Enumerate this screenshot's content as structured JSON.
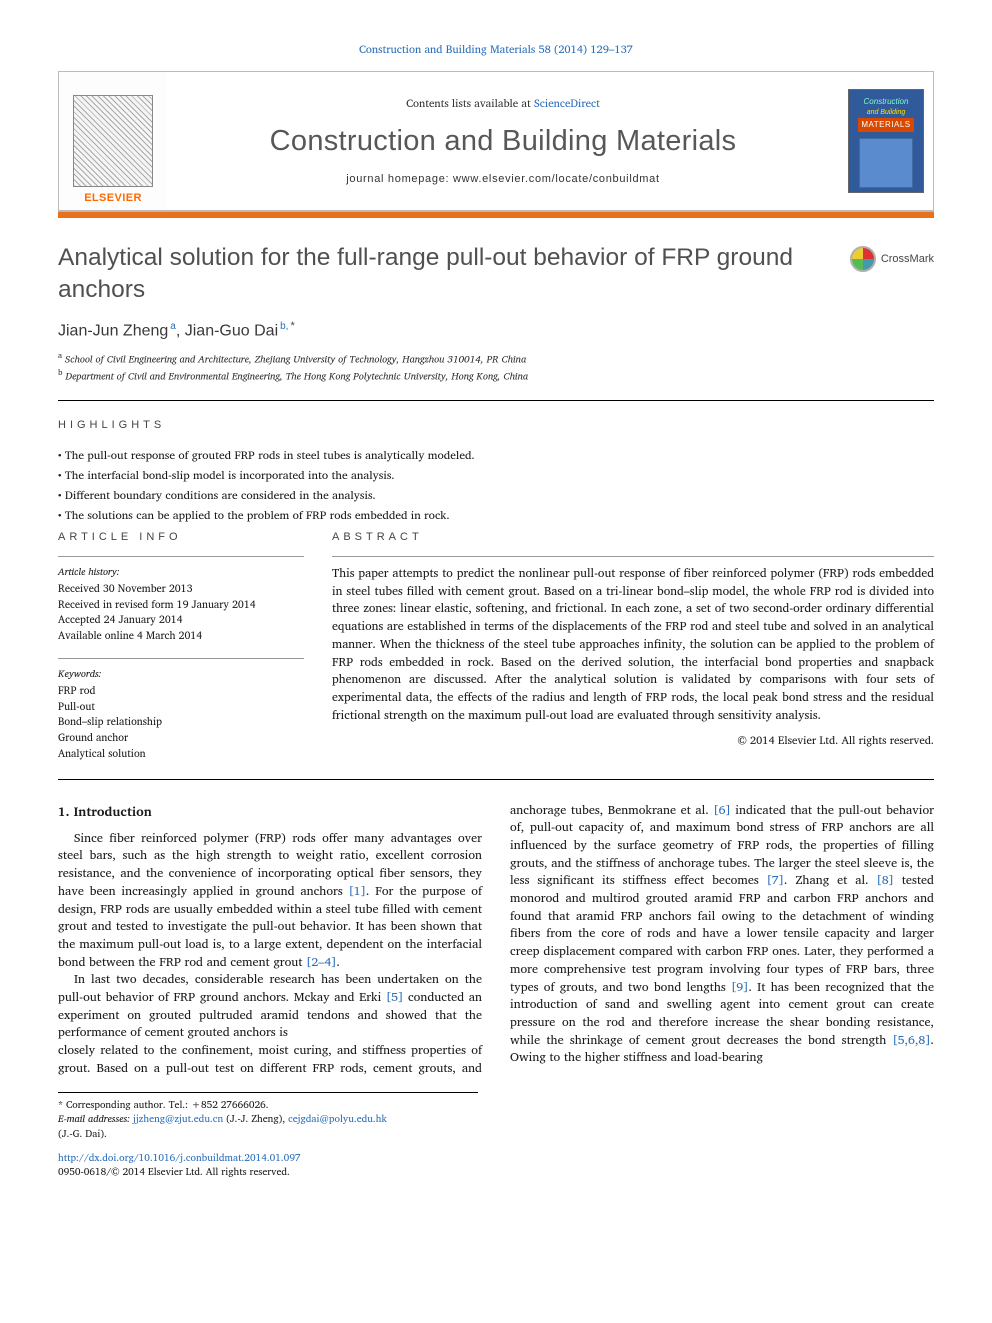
{
  "journal": {
    "citation_line": "Construction and Building Materials 58 (2014) 129–137",
    "contents_available": "Contents lists available at ",
    "contents_link": "ScienceDirect",
    "title": "Construction and Building Materials",
    "homepage_label": "journal homepage: www.elsevier.com/locate/conbuildmat",
    "publisher": "ELSEVIER",
    "cover": {
      "line1": "Construction",
      "line2": "and Building",
      "line3": "MATERIALS"
    }
  },
  "crossmark": "CrossMark",
  "article": {
    "title": "Analytical solution for the full-range pull-out behavior of FRP ground anchors",
    "authors_html": "Jian-Jun Zheng",
    "author2": "Jian-Guo Dai",
    "sup_a": "a",
    "sup_b": "b,",
    "star": "*",
    "author_sep": ", ",
    "affil_a": "School of Civil Engineering and Architecture, Zhejiang University of Technology, Hangzhou 310014, PR China",
    "affil_b": "Department of Civil and Environmental Engineering, The Hong Kong Polytechnic University, Hong Kong, China"
  },
  "highlights": {
    "heading": "highlights",
    "items": [
      "The pull-out response of grouted FRP rods in steel tubes is analytically modeled.",
      "The interfacial bond-slip model is incorporated into the analysis.",
      "Different boundary conditions are considered in the analysis.",
      "The solutions can be applied to the problem of FRP rods embedded in rock."
    ]
  },
  "article_info": {
    "heading": "article info",
    "history_heading": "Article history:",
    "history": [
      "Received 30 November 2013",
      "Received in revised form 19 January 2014",
      "Accepted 24 January 2014",
      "Available online 4 March 2014"
    ],
    "keywords_heading": "Keywords:",
    "keywords": [
      "FRP rod",
      "Pull-out",
      "Bond–slip relationship",
      "Ground anchor",
      "Analytical solution"
    ]
  },
  "abstract": {
    "heading": "abstract",
    "text": "This paper attempts to predict the nonlinear pull-out response of fiber reinforced polymer (FRP) rods embedded in steel tubes filled with cement grout. Based on a tri-linear bond–slip model, the whole FRP rod is divided into three zones: linear elastic, softening, and frictional. In each zone, a set of two second-order ordinary differential equations are established in terms of the displacements of the FRP rod and steel tube and solved in an analytical manner. When the thickness of the steel tube approaches infinity, the solution can be applied to the problem of FRP rods embedded in rock. Based on the derived solution, the interfacial bond properties and snapback phenomenon are discussed. After the analytical solution is validated by comparisons with four sets of experimental data, the effects of the radius and length of FRP rods, the local peak bond stress and the residual frictional strength on the maximum pull-out load are evaluated through sensitivity analysis.",
    "copyright": "© 2014 Elsevier Ltd. All rights reserved."
  },
  "body": {
    "section_heading": "1. Introduction",
    "p1": "Since fiber reinforced polymer (FRP) rods offer many advantages over steel bars, such as the high strength to weight ratio, excellent corrosion resistance, and the convenience of incorporating optical fiber sensors, they have been increasingly applied in ground anchors [1]. For the purpose of design, FRP rods are usually embedded within a steel tube filled with cement grout and tested to investigate the pull-out behavior. It has been shown that the maximum pull-out load is, to a large extent, dependent on the interfacial bond between the FRP rod and cement grout [2–4].",
    "p2": "In last two decades, considerable research has been undertaken on the pull-out behavior of FRP ground anchors. Mckay and Erki [5] conducted an experiment on grouted pultruded aramid tendons and showed that the performance of cement grouted anchors is",
    "p3": "closely related to the confinement, moist curing, and stiffness properties of grout. Based on a pull-out test on different FRP rods, cement grouts, and anchorage tubes, Benmokrane et al. [6] indicated that the pull-out behavior of, pull-out capacity of, and maximum bond stress of FRP anchors are all influenced by the surface geometry of FRP rods, the properties of filling grouts, and the stiffness of anchorage tubes. The larger the steel sleeve is, the less significant its stiffness effect becomes [7]. Zhang et al. [8] tested monorod and multirod grouted aramid FRP and carbon FRP anchors and found that aramid FRP anchors fail owing to the detachment of winding fibers from the core of rods and have a lower tensile capacity and larger creep displacement compared with carbon FRP ones. Later, they performed a more comprehensive test program involving four types of FRP bars, three types of grouts, and two bond lengths [9]. It has been recognized that the introduction of sand and swelling agent into cement grout can create pressure on the rod and therefore increase the shear bonding resistance, while the shrinkage of cement grout decreases the bond strength [5,6,8]. Owing to the higher stiffness and load-bearing"
  },
  "footnotes": {
    "corr": "Corresponding author. Tel.: +852 27666026.",
    "emails_label": "E-mail addresses: ",
    "email1": "jjzheng@zjut.edu.cn",
    "name1": " (J.-J. Zheng), ",
    "email2": "cejgdai@polyu.edu.hk",
    "name2": " (J.-G. Dai)."
  },
  "doi": {
    "link": "http://dx.doi.org/10.1016/j.conbuildmat.2014.01.097",
    "line2": "0950-0618/© 2014 Elsevier Ltd. All rights reserved."
  },
  "cites": {
    "c1": "[1]",
    "c24": "[2–4]",
    "c5": "[5]",
    "c6": "[6]",
    "c7": "[7]",
    "c8": "[8]",
    "c9": "[9]",
    "c568": "[5,6,8]"
  },
  "colors": {
    "link": "#2a6ebb",
    "orange_bar": "#e9711c"
  }
}
